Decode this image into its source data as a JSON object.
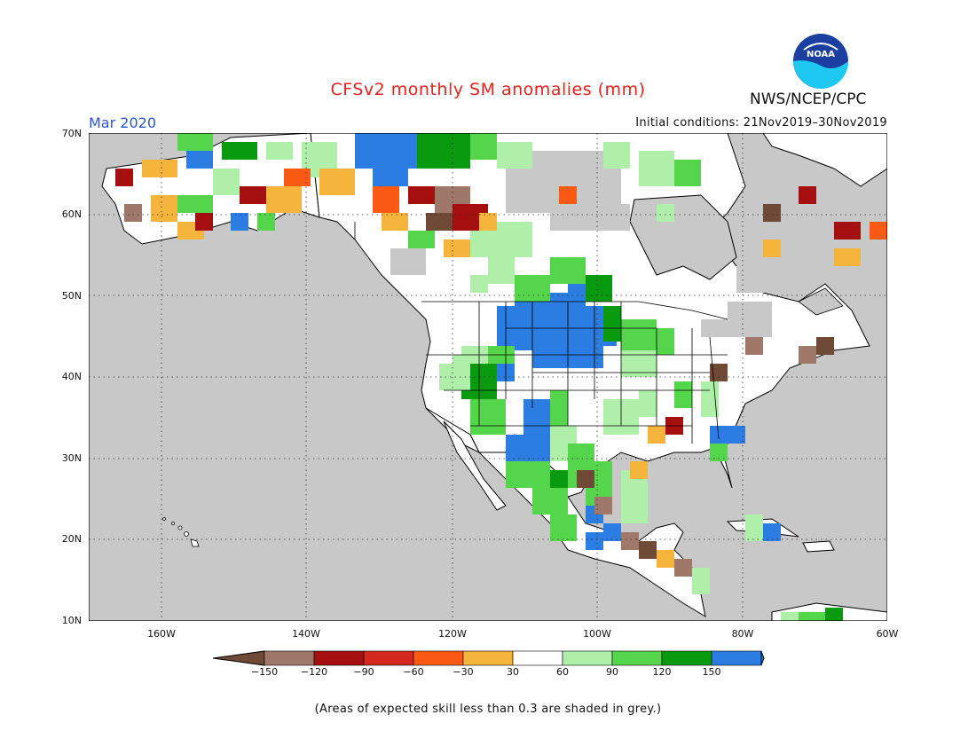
{
  "header": {
    "title": "CFSv2 monthly SM anomalies (mm)",
    "agency": "NWS/NCEP/CPC",
    "month_label": "Mar 2020",
    "initial_conditions": "Initial conditions: 21Nov2019–30Nov2019"
  },
  "logo": {
    "text": "NOAA",
    "icon": "noaa-logo-icon"
  },
  "map": {
    "latitude_labels": [
      "70N",
      "60N",
      "50N",
      "40N",
      "30N",
      "20N",
      "10N"
    ],
    "longitude_labels": [
      "160W",
      "140W",
      "120W",
      "100W",
      "80W",
      "60W"
    ],
    "grid": "dotted",
    "land_colors": {
      "ocean": "#c8c8c8",
      "land": "#ffffff",
      "border": "#000000"
    }
  },
  "colorbar": {
    "tick_labels": [
      "−150",
      "−120",
      "−90",
      "−60",
      "−30",
      "30",
      "60",
      "90",
      "120",
      "150"
    ],
    "colors": [
      "#6e4a37",
      "#a0786a",
      "#a50f0f",
      "#d42a1e",
      "#fa5a14",
      "#f5b43c",
      "#ffffff",
      "#afefaa",
      "#55d54b",
      "#0a9a10",
      "#2c7de1",
      "#2c7de1"
    ]
  },
  "footnote": "(Areas of expected skill less than 0.3 are shaded in grey.)"
}
